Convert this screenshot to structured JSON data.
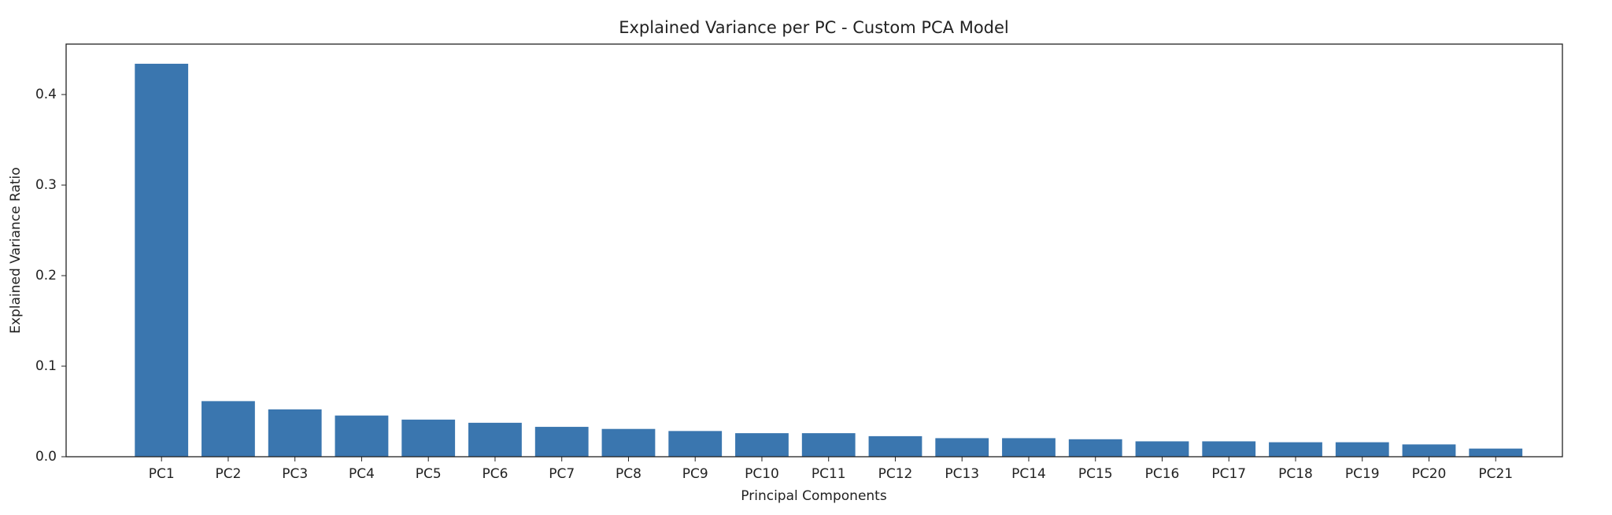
{
  "chart_data": {
    "type": "bar",
    "title": "Explained Variance per PC - Custom PCA Model",
    "x_label": "Principal Components",
    "y_label": "Explained Variance Ratio",
    "categories": [
      "PC1",
      "PC2",
      "PC3",
      "PC4",
      "PC5",
      "PC6",
      "PC7",
      "PC8",
      "PC9",
      "PC10",
      "PC11",
      "PC12",
      "PC13",
      "PC14",
      "PC15",
      "PC16",
      "PC17",
      "PC18",
      "PC19",
      "PC20",
      "PC21"
    ],
    "values": [
      0.434,
      0.0614,
      0.0523,
      0.0455,
      0.041,
      0.0375,
      0.033,
      0.0307,
      0.0284,
      0.026,
      0.026,
      0.0227,
      0.0205,
      0.0205,
      0.0193,
      0.017,
      0.017,
      0.016,
      0.016,
      0.0136,
      0.009
    ],
    "color": "#3a76af",
    "ylim": [
      0,
      0.4557
    ],
    "yticks": [
      {
        "value": 0,
        "label": "0.0"
      },
      0.1,
      0.2,
      0.3,
      0.4
    ],
    "grid": false
  }
}
